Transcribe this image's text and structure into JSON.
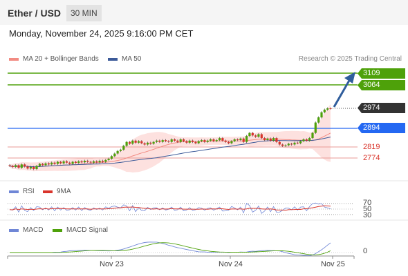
{
  "header": {
    "instrument": "Ether / USD",
    "interval": "30 MIN"
  },
  "datetime": "Monday, November 24, 2025 9:16:00 PM CET",
  "main_legend": {
    "bollinger": "MA 20 + Bollinger Bands",
    "ma50": "MA 50",
    "credit": "Research © 2025 Trading Central"
  },
  "levels": {
    "r2": "3109",
    "r1": "3064",
    "last": "2974",
    "pivot": "2894",
    "s1": "2819",
    "s2": "2774"
  },
  "rsi_legend": {
    "rsi": "RSI",
    "ma": "9MA"
  },
  "rsi_axis": {
    "t70": "70",
    "t50": "50",
    "t30": "30"
  },
  "macd_legend": {
    "macd": "MACD",
    "signal": "MACD Signal"
  },
  "macd_axis": {
    "zero": "0"
  },
  "x_axis": {
    "d1": "Nov 23",
    "d2": "Nov 24",
    "d3": "Nov 25"
  },
  "colors": {
    "resistance": "#4ea10a",
    "pivot": "#2468f2",
    "support": "#d9342b",
    "last": "#333333",
    "arrow": "#2f5d9c",
    "bollinger": "#f28b82",
    "ma50": "#3c5a99",
    "rsi": "#6f86d6",
    "rsi_ma": "#d9342b",
    "macd": "#6f86d6",
    "macd_signal": "#4ea10a",
    "candle_up": "#4ea10a",
    "candle_down": "#d9342b"
  },
  "chart_data": {
    "type": "candlestick",
    "price_axis_range": [
      2700,
      3130
    ],
    "candles_close": [
      2752,
      2748,
      2755,
      2745,
      2758,
      2750,
      2742,
      2748,
      2740,
      2752,
      2760,
      2755,
      2762,
      2758,
      2765,
      2760,
      2768,
      2762,
      2770,
      2765,
      2760,
      2768,
      2764,
      2770,
      2766,
      2772,
      2768,
      2765,
      2770,
      2766,
      2772,
      2768,
      2775,
      2780,
      2790,
      2800,
      2810,
      2815,
      2830,
      2845,
      2838,
      2850,
      2842,
      2848,
      2840,
      2835,
      2842,
      2838,
      2845,
      2850,
      2845,
      2852,
      2848,
      2845,
      2855,
      2850,
      2845,
      2855,
      2848,
      2842,
      2850,
      2845,
      2840,
      2848,
      2852,
      2845,
      2850,
      2855,
      2848,
      2852,
      2860,
      2850,
      2845,
      2840,
      2848,
      2855,
      2852,
      2858,
      2845,
      2868,
      2880,
      2870,
      2865,
      2875,
      2860,
      2852,
      2858,
      2850,
      2860,
      2845,
      2835,
      2830,
      2832,
      2838,
      2835,
      2842,
      2840,
      2848,
      2855,
      2850,
      2860,
      2880,
      2920,
      2940,
      2960,
      2970,
      2975,
      2974
    ],
    "rsi_range": [
      0,
      100
    ],
    "macd_zero": 0
  }
}
